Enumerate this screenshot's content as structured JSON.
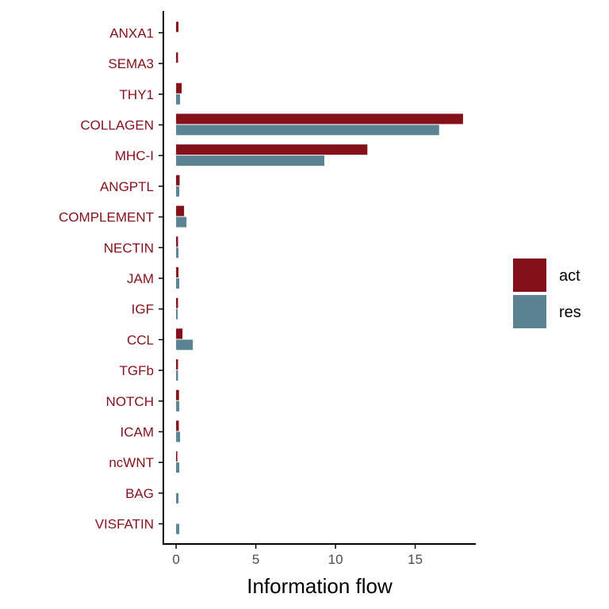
{
  "chart_data": {
    "type": "bar",
    "orientation": "horizontal",
    "title": "",
    "xlabel": "Information flow",
    "ylabel": "",
    "xlim": [
      -0.8,
      18.8
    ],
    "xticks": [
      0,
      5,
      10,
      15
    ],
    "categories": [
      "ANXA1",
      "SEMA3",
      "THY1",
      "COLLAGEN",
      "MHC-I",
      "ANGPTL",
      "COMPLEMENT",
      "NECTIN",
      "JAM",
      "IGF",
      "CCL",
      "TGFb",
      "NOTCH",
      "ICAM",
      "ncWNT",
      "BAG",
      "VISFATIN"
    ],
    "series": [
      {
        "name": "act",
        "color": "#84101a",
        "values": [
          0.15,
          0.12,
          0.35,
          18.0,
          12.0,
          0.22,
          0.5,
          0.12,
          0.15,
          0.12,
          0.4,
          0.12,
          0.18,
          0.17,
          0.08,
          0.0,
          0.0
        ]
      },
      {
        "name": "res",
        "color": "#5a8494",
        "values": [
          0.0,
          0.0,
          0.25,
          16.5,
          9.3,
          0.2,
          0.65,
          0.15,
          0.2,
          0.1,
          1.05,
          0.12,
          0.2,
          0.25,
          0.2,
          0.15,
          0.2
        ]
      }
    ],
    "tick_label_color": "#84101a",
    "grid": false,
    "legend": {
      "position": "right",
      "entries": [
        "act",
        "res"
      ]
    }
  }
}
